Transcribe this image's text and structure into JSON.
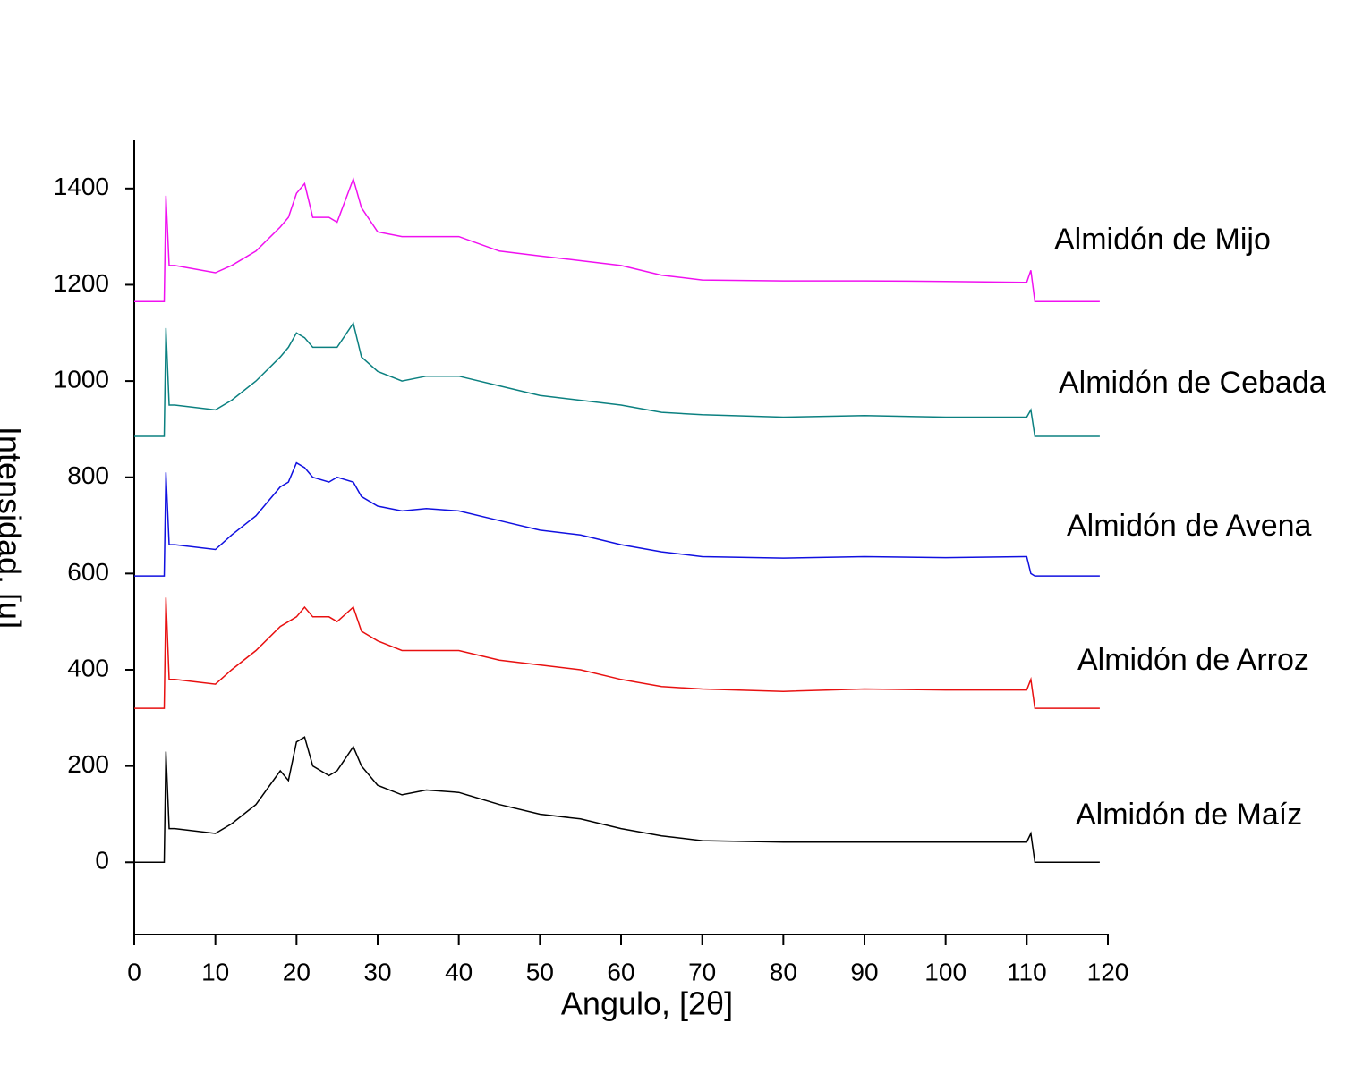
{
  "chart_data": {
    "type": "line",
    "x_label": "Angulo, [2θ]",
    "y_label": "Intensidad, [u]",
    "x": [
      0,
      3.7,
      3.9,
      4.3,
      5,
      10,
      12,
      15,
      18,
      19,
      20,
      21,
      22,
      24,
      25,
      27,
      28,
      30,
      33,
      36,
      40,
      45,
      50,
      55,
      60,
      65,
      70,
      80,
      90,
      100,
      110,
      110.5,
      111,
      119
    ],
    "series": [
      {
        "name": "Almidón de Maíz",
        "color": "#000000",
        "values": [
          0,
          0,
          230,
          70,
          70,
          60,
          80,
          120,
          190,
          170,
          250,
          260,
          200,
          180,
          190,
          240,
          200,
          160,
          140,
          150,
          145,
          120,
          100,
          90,
          70,
          55,
          45,
          42,
          42,
          42,
          42,
          60,
          0,
          0
        ]
      },
      {
        "name": "Almidón de Arroz",
        "color": "#e81010",
        "values": [
          320,
          320,
          550,
          380,
          380,
          370,
          400,
          440,
          490,
          500,
          510,
          530,
          510,
          510,
          500,
          530,
          480,
          460,
          440,
          440,
          440,
          420,
          410,
          400,
          380,
          365,
          360,
          355,
          360,
          358,
          358,
          380,
          320,
          320
        ]
      },
      {
        "name": "Almidón de Avena",
        "color": "#1010e0",
        "values": [
          595,
          595,
          810,
          660,
          660,
          650,
          680,
          720,
          780,
          790,
          830,
          820,
          800,
          790,
          800,
          790,
          760,
          740,
          730,
          735,
          730,
          710,
          690,
          680,
          660,
          645,
          635,
          632,
          635,
          633,
          635,
          600,
          595,
          595
        ]
      },
      {
        "name": "Almidón de Cebada",
        "color": "#0b8080",
        "values": [
          885,
          885,
          1110,
          950,
          950,
          940,
          960,
          1000,
          1050,
          1070,
          1100,
          1090,
          1070,
          1070,
          1070,
          1120,
          1050,
          1020,
          1000,
          1010,
          1010,
          990,
          970,
          960,
          950,
          935,
          930,
          925,
          928,
          925,
          925,
          940,
          885,
          885
        ]
      },
      {
        "name": "Almidón de Mijo",
        "color": "#f010f0",
        "values": [
          1165,
          1165,
          1385,
          1240,
          1240,
          1225,
          1240,
          1270,
          1320,
          1340,
          1390,
          1410,
          1340,
          1340,
          1330,
          1420,
          1360,
          1310,
          1300,
          1300,
          1300,
          1270,
          1260,
          1250,
          1240,
          1220,
          1210,
          1208,
          1208,
          1207,
          1205,
          1230,
          1165,
          1165
        ]
      }
    ],
    "xlim": [
      0,
      120
    ],
    "xticks": [
      0,
      10,
      20,
      30,
      40,
      50,
      60,
      70,
      80,
      90,
      100,
      110,
      120
    ],
    "ylim": [
      -150,
      1500
    ],
    "yticks": [
      0,
      200,
      400,
      600,
      800,
      1000,
      1200,
      1400
    ],
    "grid": false
  }
}
